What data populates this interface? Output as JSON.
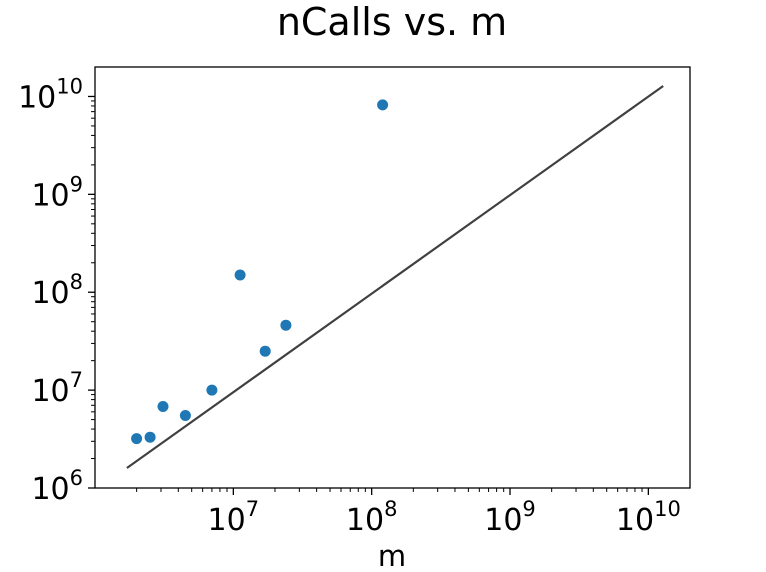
{
  "chart_data": {
    "type": "scatter",
    "title": "nCalls vs. m",
    "xlabel": "m",
    "ylabel": "",
    "xscale": "log",
    "yscale": "log",
    "xlim": [
      1000000.0,
      20000000000.0
    ],
    "ylim": [
      1000000.0,
      20000000000.0
    ],
    "x_ticks": [
      {
        "base": "10",
        "exp": "7",
        "value": 10000000.0
      },
      {
        "base": "10",
        "exp": "8",
        "value": 100000000.0
      },
      {
        "base": "10",
        "exp": "9",
        "value": 1000000000.0
      },
      {
        "base": "10",
        "exp": "10",
        "value": 10000000000.0
      }
    ],
    "y_ticks": [
      {
        "base": "10",
        "exp": "6",
        "value": 1000000.0
      },
      {
        "base": "10",
        "exp": "7",
        "value": 10000000.0
      },
      {
        "base": "10",
        "exp": "8",
        "value": 100000000.0
      },
      {
        "base": "10",
        "exp": "9",
        "value": 1000000000.0
      },
      {
        "base": "10",
        "exp": "10",
        "value": 10000000000.0
      }
    ],
    "grid": false,
    "series": [
      {
        "kind": "scatter",
        "color": "#1f77b4",
        "points": [
          {
            "x": 2000000.0,
            "y": 3200000.0
          },
          {
            "x": 2500000.0,
            "y": 3300000.0
          },
          {
            "x": 3100000.0,
            "y": 6800000.0
          },
          {
            "x": 4500000.0,
            "y": 5500000.0
          },
          {
            "x": 7000000.0,
            "y": 10000000.0
          },
          {
            "x": 11200000.0,
            "y": 150000000.0
          },
          {
            "x": 17000000.0,
            "y": 25000000.0
          },
          {
            "x": 24000000.0,
            "y": 46000000.0
          },
          {
            "x": 120000000.0,
            "y": 8200000000.0
          }
        ]
      },
      {
        "kind": "line",
        "color": "#404040",
        "points": [
          {
            "x": 1700000.0,
            "y": 1600000.0
          },
          {
            "x": 12800000000.0,
            "y": 12800000000.0
          }
        ]
      }
    ]
  }
}
